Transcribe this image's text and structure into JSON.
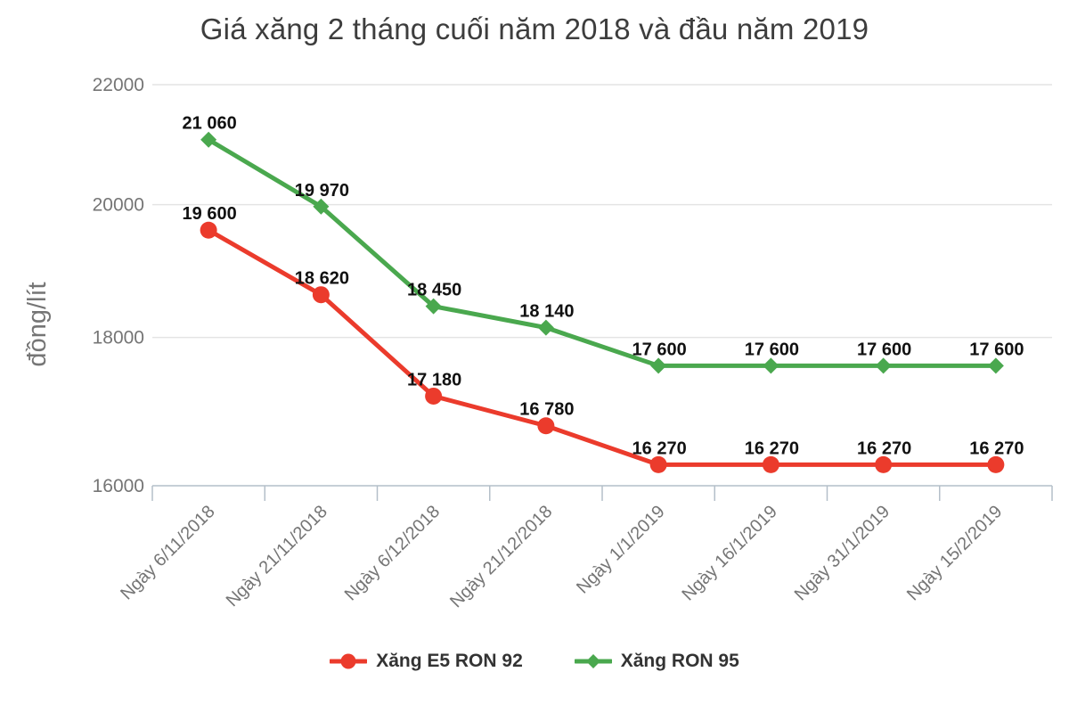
{
  "chart_data": {
    "type": "line",
    "title": "Giá xăng 2 tháng cuối năm 2018 và đầu năm 2019",
    "ylabel": "đồng/lít",
    "xlabel": "",
    "categories": [
      "Ngày 6/11/2018",
      "Ngày 21/11/2018",
      "Ngày 6/12/2018",
      "Ngày 21/12/2018",
      "Ngày 1/1/2019",
      "Ngày 16/1/2019",
      "Ngày 31/1/2019",
      "Ngày 15/2/2019"
    ],
    "series": [
      {
        "name": "Xăng E5 RON 92",
        "marker": "circle",
        "color": "#EB3B2C",
        "values": [
          19600,
          18620,
          17180,
          16780,
          16270,
          16270,
          16270,
          16270
        ]
      },
      {
        "name": "Xăng RON 95",
        "marker": "diamond",
        "color": "#4AA84E",
        "values": [
          21060,
          19970,
          18450,
          18140,
          17600,
          17600,
          17600,
          17600
        ]
      }
    ],
    "y_ticks": [
      16000,
      18000,
      20000,
      22000
    ],
    "ylim": [
      16000,
      22000
    ],
    "y_scale": "log",
    "grid": true,
    "data_labels": true,
    "number_format": "space-thousands",
    "legend_position": "bottom"
  },
  "colors": {
    "grid_line": "#e4e4e4",
    "axis_line": "#b4bfc9",
    "tick_text": "#757575",
    "axis_title_text": "#757575",
    "title_text": "#3d3d3d",
    "data_label_text": "#111111",
    "legend_text": "#333333"
  }
}
